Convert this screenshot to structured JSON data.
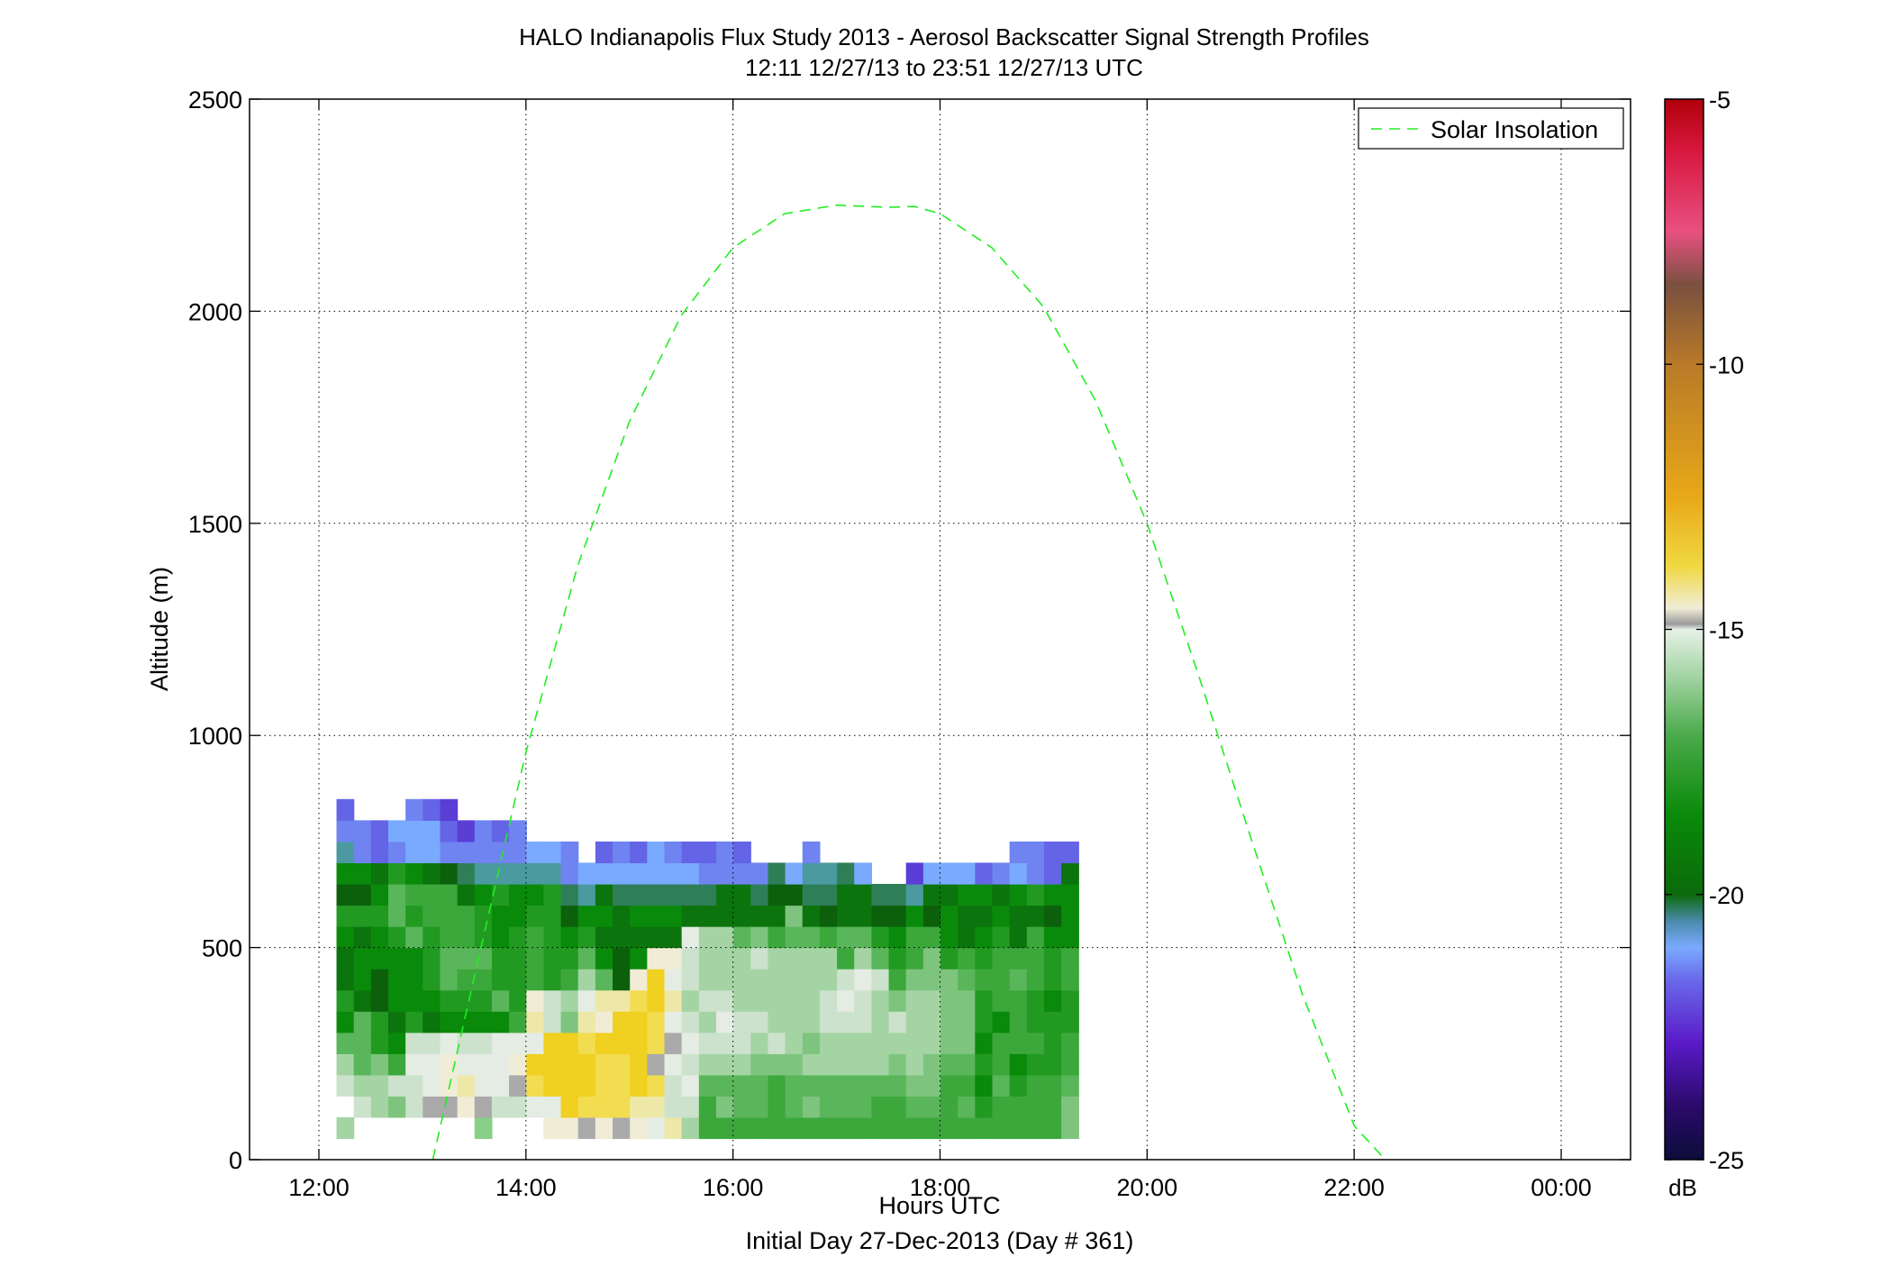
{
  "chart_data": {
    "type": "heatmap",
    "title": "HALO Indianapolis Flux Study 2013 - Aerosol Backscatter Signal Strength Profiles",
    "subtitle": "12:11 12/27/13 to 23:51 12/27/13  UTC",
    "xlabel": "Hours UTC",
    "xlabel2": "Initial Day 27-Dec-2013 (Day # 361)",
    "ylabel": "Altitude (m)",
    "xlim": [
      11.33,
      24.67
    ],
    "ylim": [
      0,
      2500
    ],
    "x_ticks": [
      12,
      14,
      16,
      18,
      20,
      22,
      24
    ],
    "x_tick_labels": [
      "12:00",
      "14:00",
      "16:00",
      "18:00",
      "20:00",
      "22:00",
      "00:00"
    ],
    "y_ticks": [
      0,
      500,
      1000,
      1500,
      2000,
      2500
    ],
    "y_tick_labels": [
      "0",
      "500",
      "1000",
      "1500",
      "2000",
      "2500"
    ],
    "grid": true,
    "legend": {
      "placement": "top-right",
      "entries": [
        "Solar Insolation"
      ]
    },
    "colorbar": {
      "label": "dB",
      "range": [
        -25,
        -5
      ],
      "ticks": [
        -5,
        -10,
        -15,
        -20,
        -25
      ],
      "tick_labels": [
        "-5",
        "-10",
        "-15",
        "-20",
        "-25"
      ],
      "stops": [
        {
          "v": -25.0,
          "c": "#0c0c3a"
        },
        {
          "v": -24.0,
          "c": "#2a0a6a"
        },
        {
          "v": -22.8,
          "c": "#5a1ac8"
        },
        {
          "v": -21.6,
          "c": "#6a6aea"
        },
        {
          "v": -21.0,
          "c": "#7aaaff"
        },
        {
          "v": -20.5,
          "c": "#4a8aaa"
        },
        {
          "v": -20.0,
          "c": "#0a6a0a"
        },
        {
          "v": -18.5,
          "c": "#0a8a0a"
        },
        {
          "v": -17.0,
          "c": "#4aaa4a"
        },
        {
          "v": -16.0,
          "c": "#9ad09a"
        },
        {
          "v": -15.0,
          "c": "#e6f0e6"
        },
        {
          "v": -14.9,
          "c": "#9a9a9a"
        },
        {
          "v": -14.6,
          "c": "#f0ecd6"
        },
        {
          "v": -13.8,
          "c": "#f0d840"
        },
        {
          "v": -12.5,
          "c": "#e8a818"
        },
        {
          "v": -10.0,
          "c": "#b87a28"
        },
        {
          "v": -8.5,
          "c": "#7a5040"
        },
        {
          "v": -7.5,
          "c": "#e85080"
        },
        {
          "v": -6.0,
          "c": "#d81840"
        },
        {
          "v": -5.0,
          "c": "#b0000a"
        }
      ]
    },
    "cell_hours": 0.1667,
    "cell_meters": 50,
    "row_bottoms_m": [
      50,
      100,
      150,
      200,
      250,
      300,
      350,
      400,
      450,
      500,
      550,
      600,
      650,
      700,
      750,
      800
    ],
    "palette": {
      "A": "#cce2cc",
      "B": "#a4d4a4",
      "C": "#7ec47e",
      "D": "#5ab65a",
      "E": "#3ca83c",
      "F": "#229a22",
      "G": "#0a8a0a",
      "H": "#0c740c",
      "I": "#0c600c",
      "J": "#2e7e58",
      "K": "#4a9aa0",
      "L": "#7aaaff",
      "M": "#6f84f0",
      "N": "#6464e6",
      "O": "#5a3ed6",
      "P": "#f0d020",
      "Q": "#f2dc50",
      "R": "#eee8a8",
      "S": "#f0ecd6",
      "T": "#e4ece4",
      "U": "#aaaaaa",
      "V": "#88d088"
    },
    "first_column_hour": 12.17,
    "columns": [
      "B.ABDGFHHGFIGKMNN",
      ".ABDDDHGGHFIGMM.",
      ".BBCFFIIGGFGHNN.",
      ".CAEGHGGGFDDFML.",
      ".AATAFGGGDFEGLLM",
      ".UTTAHGFFFEEHLLN",
      ".USSTGFDDEEEIMNO",
      ".SRTAGFEDEEHJMO.",
      "VUTTAGFEDFFGKMM.",
      ".ATTTGDFFGGFKMN.",
      ".AUSTEFFFFGGKMM.",
      ".TQPTRSEEEFGKL..",
      "STPPPAAFFFFFKL..",
      "SPPPPCBEFGIJMM..",
      "UQPPQRTBDFGKL...",
      "SQQQPSRDGHGHLN..",
      "UQQQPPRIIHHJLM..",
      "SRPPPPQSGHGJLN..",
      "TRQUQQPPSHGJLL..",
      "RAATUTRTSHGJLM..",
      "BATATABAATHJLN..",
      "EEDBABABBBHJMN..",
      "ECDBATABBBHHMM..",
      "EDDBAABBBDHHMN..",
      "EDDCBABBACHJM...",
      "EEECABBBBEHIJ...",
      "EDDCBBBBBDCIL...",
      "ECDBCBBBBDHJKM..",
      "EDDBBAABBEIJK...",
      "EDDBBATAEDHHJ...",
      "EDDBBAATBDHHL...",
      "EEDBBBBADFIJ....",
      "EEDCBACEFGIJ....",
      "EDCBBBBCEEGKO...",
      "EDCCBBBCCEIHL...",
      "EEEDCCCCFGGHL...",
      "EDEDCCCDEHHGL...",
      "EFGFGFFEFGHGN...",
      "EEDEEGEEEFGHM...",
      "EEFGEEEDEHHGLM..",
      "EEEFEFFEEEHFMM..",
      "EEEFFFGFFGIGNN..",
      "CCDEEFFEEGGGHN.."
    ],
    "series": [
      {
        "name": "Solar Insolation",
        "style": "dashed",
        "color": "#22ee22",
        "x": [
          13.1,
          13.5,
          14.0,
          14.5,
          15.0,
          15.5,
          16.0,
          16.5,
          17.0,
          17.5,
          17.75,
          18.0,
          18.5,
          19.0,
          19.5,
          20.0,
          20.5,
          21.0,
          21.5,
          22.0,
          22.3
        ],
        "y": [
          0,
          430,
          960,
          1400,
          1740,
          1990,
          2150,
          2230,
          2250,
          2245,
          2247,
          2230,
          2150,
          2010,
          1790,
          1500,
          1140,
          760,
          390,
          80,
          0
        ]
      }
    ]
  }
}
